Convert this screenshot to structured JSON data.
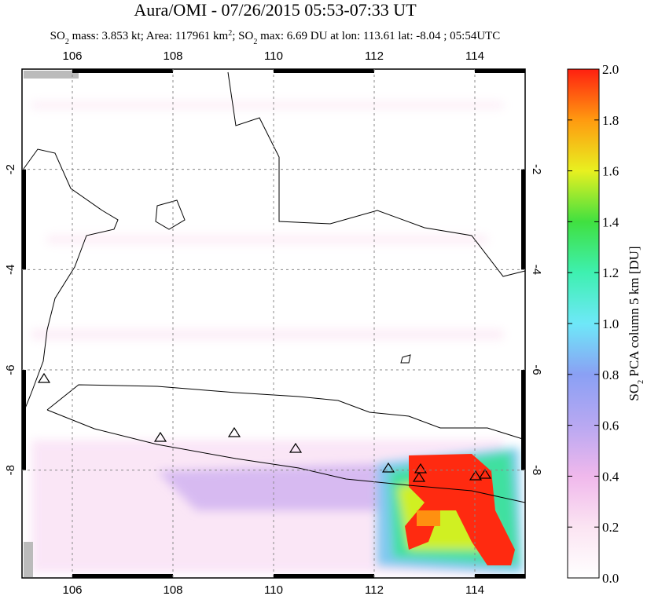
{
  "title": "Aura/OMI - 07/26/2015 05:53-07:33 UT",
  "subtitle": [
    "SO",
    "2",
    " mass: 3.853 kt; Area: 117961 km",
    "2",
    "; SO",
    "2",
    " max: 6.69 DU at lon: 113.61 lat: -8.04 ; 05:54UTC"
  ],
  "map": {
    "xlim": [
      105,
      115
    ],
    "ylim": [
      -10.15,
      0
    ],
    "xticks": [
      106,
      108,
      110,
      112,
      114
    ],
    "yticks": [
      -2,
      -4,
      -6,
      -8
    ]
  },
  "colorbar": {
    "label": [
      "SO",
      "2",
      " PCA column 5 km [DU]"
    ],
    "lim": [
      0,
      2
    ],
    "ticks": [
      {
        "value": 0,
        "label": "0.0"
      },
      0.2,
      0.4,
      0.6,
      0.8,
      {
        "value": 1,
        "label": "1.0"
      },
      1.2,
      1.4,
      1.6,
      1.8,
      {
        "value": 2,
        "label": "2.0"
      }
    ]
  }
}
